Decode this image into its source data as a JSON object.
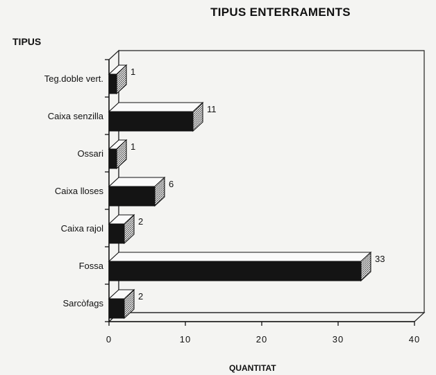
{
  "chart_data": {
    "type": "bar",
    "orientation": "horizontal",
    "title": "TIPUS ENTERRAMENTS",
    "ylabel": "TIPUS",
    "xlabel": "QUANTITAT",
    "categories": [
      "Teg.doble vert.",
      "Caixa senzilla",
      "Ossari",
      "Caixa lloses",
      "Caixa rajol",
      "Fossa",
      "Sarcòfags"
    ],
    "values": [
      1,
      11,
      1,
      6,
      2,
      33,
      2
    ],
    "data_labels": [
      "1",
      "11",
      "1",
      "6",
      "2",
      "33",
      "2"
    ],
    "xlim": [
      0,
      40
    ],
    "xticks": [
      "0",
      "10",
      "20",
      "30",
      "40"
    ],
    "grid": false,
    "style": "3d"
  }
}
